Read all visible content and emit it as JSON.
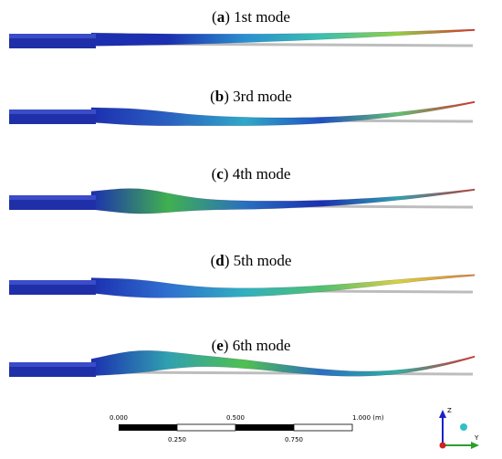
{
  "panels": [
    {
      "open": "(",
      "letter": "a",
      "rest": ") 1st mode"
    },
    {
      "open": "(",
      "letter": "b",
      "rest": ") 3rd mode"
    },
    {
      "open": "(",
      "letter": "c",
      "rest": ") 4th mode"
    },
    {
      "open": "(",
      "letter": "d",
      "rest": ") 5th mode"
    },
    {
      "open": "(",
      "letter": "e",
      "rest": ") 6th mode"
    }
  ],
  "scale_bar": {
    "top_labels": [
      "0.000",
      "0.500",
      "1.000 (m)"
    ],
    "bottom_labels": [
      "0.250",
      "0.750"
    ]
  },
  "triad": {
    "z": "Z",
    "y": "Y"
  }
}
